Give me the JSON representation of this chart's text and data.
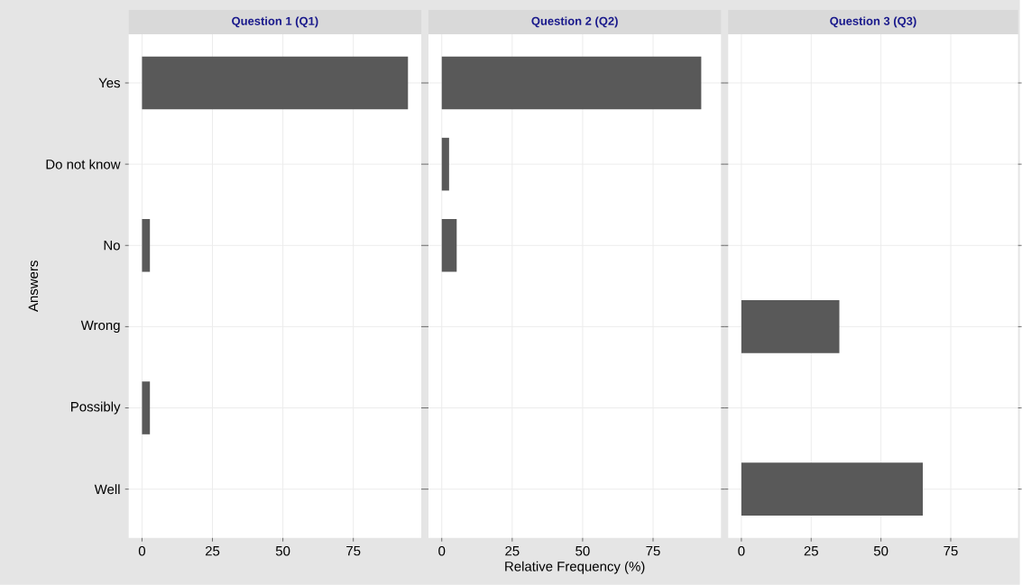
{
  "chart_data": [
    {
      "type": "bar",
      "orientation": "horizontal",
      "title": "Question 1 (Q1)",
      "ylabel": "Answers",
      "categories": [
        "Yes",
        "Do not know",
        "No",
        "Wrong",
        "Possibly",
        "Well"
      ],
      "values": [
        94.4,
        null,
        2.8,
        null,
        2.8,
        null
      ],
      "color": "#595959",
      "xlim": [
        -4.72,
        99.12
      ],
      "xticks": [
        0,
        25,
        50,
        75
      ],
      "grid": true
    },
    {
      "type": "bar",
      "orientation": "horizontal",
      "title": "Question 2 (Q2)",
      "xlabel": "Relative Frequency (%)",
      "values": [
        92.1,
        2.6,
        5.3,
        null,
        null,
        null
      ],
      "color": "#595959",
      "xlim": [
        -4.72,
        99.12
      ],
      "xticks": [
        0,
        25,
        50,
        75
      ],
      "grid": true,
      "tick_labels": "x"
    },
    {
      "type": "bar",
      "orientation": "horizontal",
      "title": "Question 3 (Q3)",
      "values": [
        null,
        null,
        null,
        35.1,
        null,
        65.0
      ],
      "color": "#595959",
      "xlim": [
        -4.72,
        99.12
      ],
      "xticks": [
        0,
        25,
        50,
        75
      ],
      "grid": true,
      "tick_labels": "x"
    }
  ]
}
